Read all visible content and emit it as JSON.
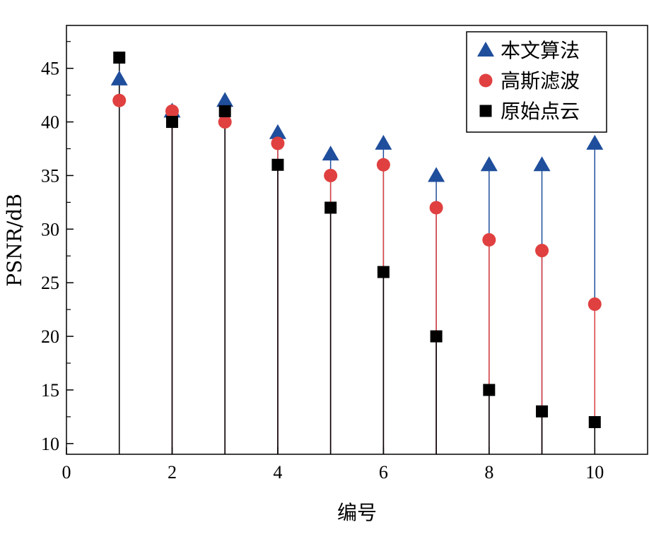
{
  "chart_data": {
    "type": "scatter",
    "style": "stem",
    "xlabel": "编号",
    "ylabel": "PSNR/dB",
    "xlim": [
      0,
      11
    ],
    "ylim": [
      9,
      49
    ],
    "xticks": [
      "0",
      "2",
      "4",
      "6",
      "8",
      "10"
    ],
    "yticks": [
      "10",
      "15",
      "20",
      "25",
      "30",
      "35",
      "40",
      "45"
    ],
    "grid": false,
    "legend_position": "top-right",
    "x": [
      1,
      2,
      3,
      4,
      5,
      6,
      7,
      8,
      9,
      10
    ],
    "series": [
      {
        "name": "本文算法",
        "marker": "triangle",
        "color": "#1f4e9c",
        "values": [
          44,
          41,
          42,
          39,
          37,
          38,
          35,
          36,
          36,
          38
        ]
      },
      {
        "name": "高斯滤波",
        "marker": "circle",
        "color": "#e04040",
        "values": [
          42,
          41,
          40,
          38,
          35,
          36,
          32,
          29,
          28,
          23
        ]
      },
      {
        "name": "原始点云",
        "marker": "square",
        "color": "#000000",
        "values": [
          46,
          40,
          41,
          36,
          32,
          26,
          20,
          15,
          13,
          12
        ]
      }
    ]
  }
}
